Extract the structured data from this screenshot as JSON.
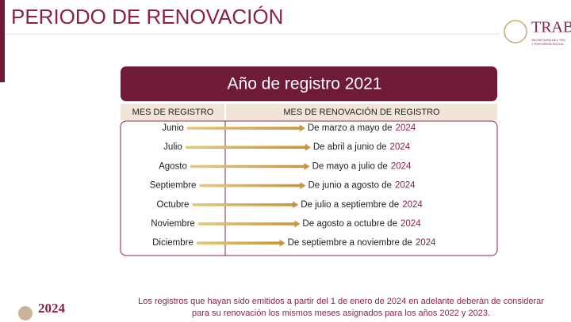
{
  "header": {
    "title": "PERIODO DE RENOVACIÓN",
    "logo": "TRAB",
    "logo_sub1": "SECRETARÍA DEL TRA",
    "logo_sub2": "Y PREVISIÓN SOCIAL"
  },
  "table": {
    "title": "Año de registro 2021",
    "columns": [
      "MES DE REGISTRO",
      "MES DE RENOVACIÓN DE REGISTRO"
    ],
    "rows": [
      {
        "month": "Junio",
        "renewal": "De marzo a mayo de",
        "year": "2024"
      },
      {
        "month": "Julio",
        "renewal": "De abril a junio de",
        "year": "2024"
      },
      {
        "month": "Agosto",
        "renewal": "De mayo a julio de",
        "year": "2024"
      },
      {
        "month": "Septiembre",
        "renewal": "De junio a agosto de",
        "year": "2024"
      },
      {
        "month": "Octubre",
        "renewal": "De julio a septiembre de",
        "year": "2024"
      },
      {
        "month": "Noviembre",
        "renewal": "De agosto a octubre de",
        "year": "2024"
      },
      {
        "month": "Diciembre",
        "renewal": "De septiembre a noviembre de",
        "year": "2024"
      }
    ]
  },
  "footer": {
    "note_line1": "Los registros que hayan sido emitidos a partir del 1 de enero de 2024 en adelante deberán de considerar",
    "note_line2": "para su renovación los mismos meses asignados para los años 2022 y 2023.",
    "badge": "2024"
  }
}
